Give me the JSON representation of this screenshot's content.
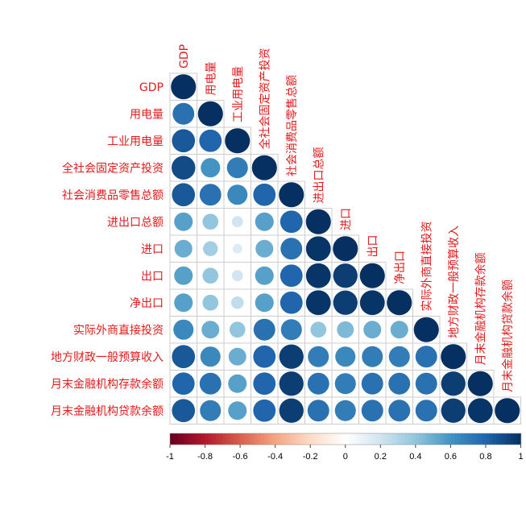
{
  "chart_data": {
    "type": "heatmap",
    "layout": "lower-triangle",
    "glyph": "circle",
    "title": "",
    "variables": [
      "GDP",
      "用电量",
      "工业用电量",
      "全社会固定资产投资",
      "社会消费品零售总额",
      "进出口总额",
      "进口",
      "出口",
      "净出口",
      "实际外商直接投资",
      "地方财政一般预算收入",
      "月末金融机构存款余额",
      "月末金融机构贷款余额"
    ],
    "matrix": [
      [
        1.0
      ],
      [
        0.75,
        1.0
      ],
      [
        0.85,
        0.8,
        1.0
      ],
      [
        0.9,
        0.6,
        0.7,
        1.0
      ],
      [
        0.85,
        0.75,
        0.65,
        0.8,
        1.0
      ],
      [
        0.55,
        0.4,
        0.2,
        0.55,
        0.8,
        1.0
      ],
      [
        0.5,
        0.35,
        0.15,
        0.5,
        0.75,
        0.98,
        1.0
      ],
      [
        0.55,
        0.4,
        0.2,
        0.55,
        0.8,
        0.98,
        0.95,
        1.0
      ],
      [
        0.55,
        0.4,
        0.25,
        0.55,
        0.8,
        0.98,
        0.95,
        0.98,
        1.0
      ],
      [
        0.65,
        0.5,
        0.4,
        0.75,
        0.7,
        0.4,
        0.45,
        0.5,
        0.5,
        1.0
      ],
      [
        0.85,
        0.65,
        0.5,
        0.8,
        0.95,
        0.7,
        0.65,
        0.7,
        0.7,
        0.75,
        1.0
      ],
      [
        0.8,
        0.75,
        0.55,
        0.8,
        0.95,
        0.75,
        0.7,
        0.75,
        0.75,
        0.75,
        0.95,
        1.0
      ],
      [
        0.85,
        0.7,
        0.55,
        0.8,
        0.95,
        0.75,
        0.7,
        0.75,
        0.75,
        0.75,
        0.95,
        0.98,
        1.0
      ]
    ],
    "colorbar": {
      "range": [
        -1,
        1
      ],
      "ticks": [
        "-1",
        "-0.8",
        "-0.6",
        "-0.4",
        "-0.2",
        "0",
        "0.2",
        "0.4",
        "0.6",
        "0.8",
        "1"
      ],
      "colors": [
        "#67001F",
        "#B2182B",
        "#D6604D",
        "#F4A582",
        "#FDDBC7",
        "#FFFFFF",
        "#D1E5F0",
        "#92C5DE",
        "#4393C3",
        "#2166AC",
        "#053061"
      ]
    },
    "label_color": "#e31a1c"
  }
}
